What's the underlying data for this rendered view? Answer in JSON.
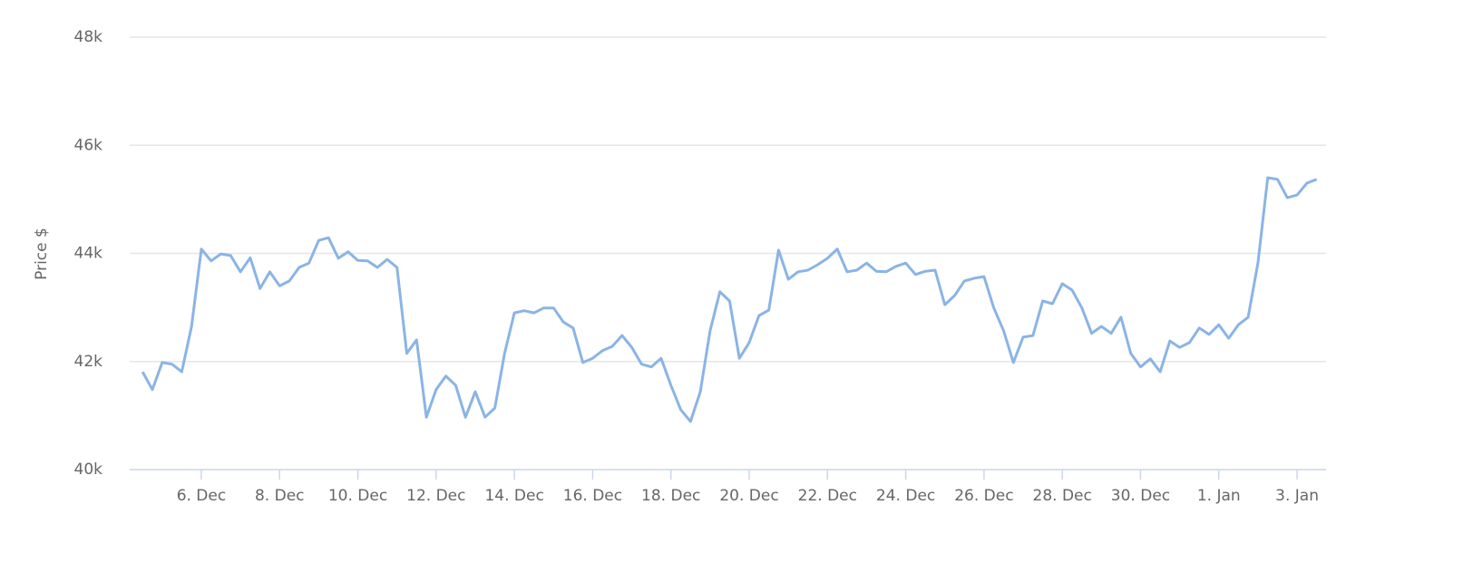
{
  "chart_data": {
    "type": "line",
    "y_label": "Price $",
    "x": [
      4.5,
      4.75,
      5,
      5.25,
      5.5,
      5.75,
      6,
      6.25,
      6.5,
      6.75,
      7,
      7.25,
      7.5,
      7.75,
      8,
      8.25,
      8.5,
      8.75,
      9,
      9.25,
      9.5,
      9.75,
      10,
      10.25,
      10.5,
      10.75,
      11,
      11.25,
      11.5,
      11.75,
      12,
      12.25,
      12.5,
      12.75,
      13,
      13.25,
      13.5,
      13.75,
      14,
      14.25,
      14.5,
      14.75,
      15,
      15.25,
      15.5,
      15.75,
      16,
      16.25,
      16.5,
      16.75,
      17,
      17.25,
      17.5,
      17.75,
      18,
      18.25,
      18.5,
      18.75,
      19,
      19.25,
      19.5,
      19.75,
      20,
      20.25,
      20.5,
      20.75,
      21,
      21.25,
      21.5,
      21.75,
      22,
      22.25,
      22.5,
      22.75,
      23,
      23.25,
      23.5,
      23.75,
      24,
      24.25,
      24.5,
      24.75,
      25,
      25.25,
      25.5,
      25.75,
      26,
      26.25,
      26.5,
      26.75,
      27,
      27.25,
      27.5,
      27.75,
      28,
      28.25,
      28.5,
      28.75,
      29,
      29.25,
      29.5,
      29.75,
      30,
      30.25,
      30.5,
      30.75,
      31,
      31.25,
      31.5,
      31.75,
      32,
      32.25,
      32.5,
      32.75,
      33,
      33.25,
      33.5,
      33.75,
      34,
      34.25,
      34.5
    ],
    "series": [
      {
        "name": "Price",
        "color": "#8ab4e6",
        "values": [
          41810,
          41480,
          41980,
          41950,
          41810,
          42650,
          44080,
          43860,
          43990,
          43960,
          43660,
          43920,
          43350,
          43660,
          43400,
          43490,
          43740,
          43820,
          44240,
          44290,
          43910,
          44030,
          43870,
          43860,
          43740,
          43890,
          43740,
          42150,
          42400,
          40970,
          41480,
          41730,
          41560,
          40970,
          41440,
          40970,
          41140,
          42150,
          42900,
          42940,
          42900,
          42990,
          42990,
          42730,
          42620,
          41980,
          42060,
          42200,
          42280,
          42480,
          42260,
          41950,
          41900,
          42060,
          41560,
          41110,
          40890,
          41440,
          42570,
          43290,
          43120,
          42060,
          42350,
          42850,
          42950,
          44060,
          43520,
          43660,
          43690,
          43790,
          43910,
          44080,
          43660,
          43690,
          43820,
          43670,
          43660,
          43760,
          43820,
          43610,
          43670,
          43690,
          43050,
          43220,
          43490,
          43540,
          43570,
          42990,
          42570,
          41980,
          42450,
          42480,
          43120,
          43070,
          43440,
          43320,
          42990,
          42520,
          42650,
          42520,
          42820,
          42150,
          41900,
          42050,
          41810,
          42380,
          42260,
          42350,
          42620,
          42500,
          42680,
          42430,
          42680,
          42820,
          43820,
          45400,
          45370,
          45030,
          45080,
          45300,
          45370
        ]
      }
    ],
    "xlim": [
      4.17,
      34.74
    ],
    "xticks": [
      {
        "value": 6,
        "label": "6. Dec"
      },
      {
        "value": 8,
        "label": "8. Dec"
      },
      {
        "value": 10,
        "label": "10. Dec"
      },
      {
        "value": 12,
        "label": "12. Dec"
      },
      {
        "value": 14,
        "label": "14. Dec"
      },
      {
        "value": 16,
        "label": "16. Dec"
      },
      {
        "value": 18,
        "label": "18. Dec"
      },
      {
        "value": 20,
        "label": "20. Dec"
      },
      {
        "value": 22,
        "label": "22. Dec"
      },
      {
        "value": 24,
        "label": "24. Dec"
      },
      {
        "value": 26,
        "label": "26. Dec"
      },
      {
        "value": 28,
        "label": "28. Dec"
      },
      {
        "value": 30,
        "label": "30. Dec"
      },
      {
        "value": 32,
        "label": "1. Jan"
      },
      {
        "value": 34,
        "label": "3. Jan"
      }
    ],
    "ylim": [
      40000,
      48000
    ],
    "yticks": [
      {
        "value": 40000,
        "label": "40k"
      },
      {
        "value": 42000,
        "label": "42k"
      },
      {
        "value": 44000,
        "label": "44k"
      },
      {
        "value": 46000,
        "label": "46k"
      },
      {
        "value": 48000,
        "label": "48k"
      }
    ],
    "grid": true
  }
}
